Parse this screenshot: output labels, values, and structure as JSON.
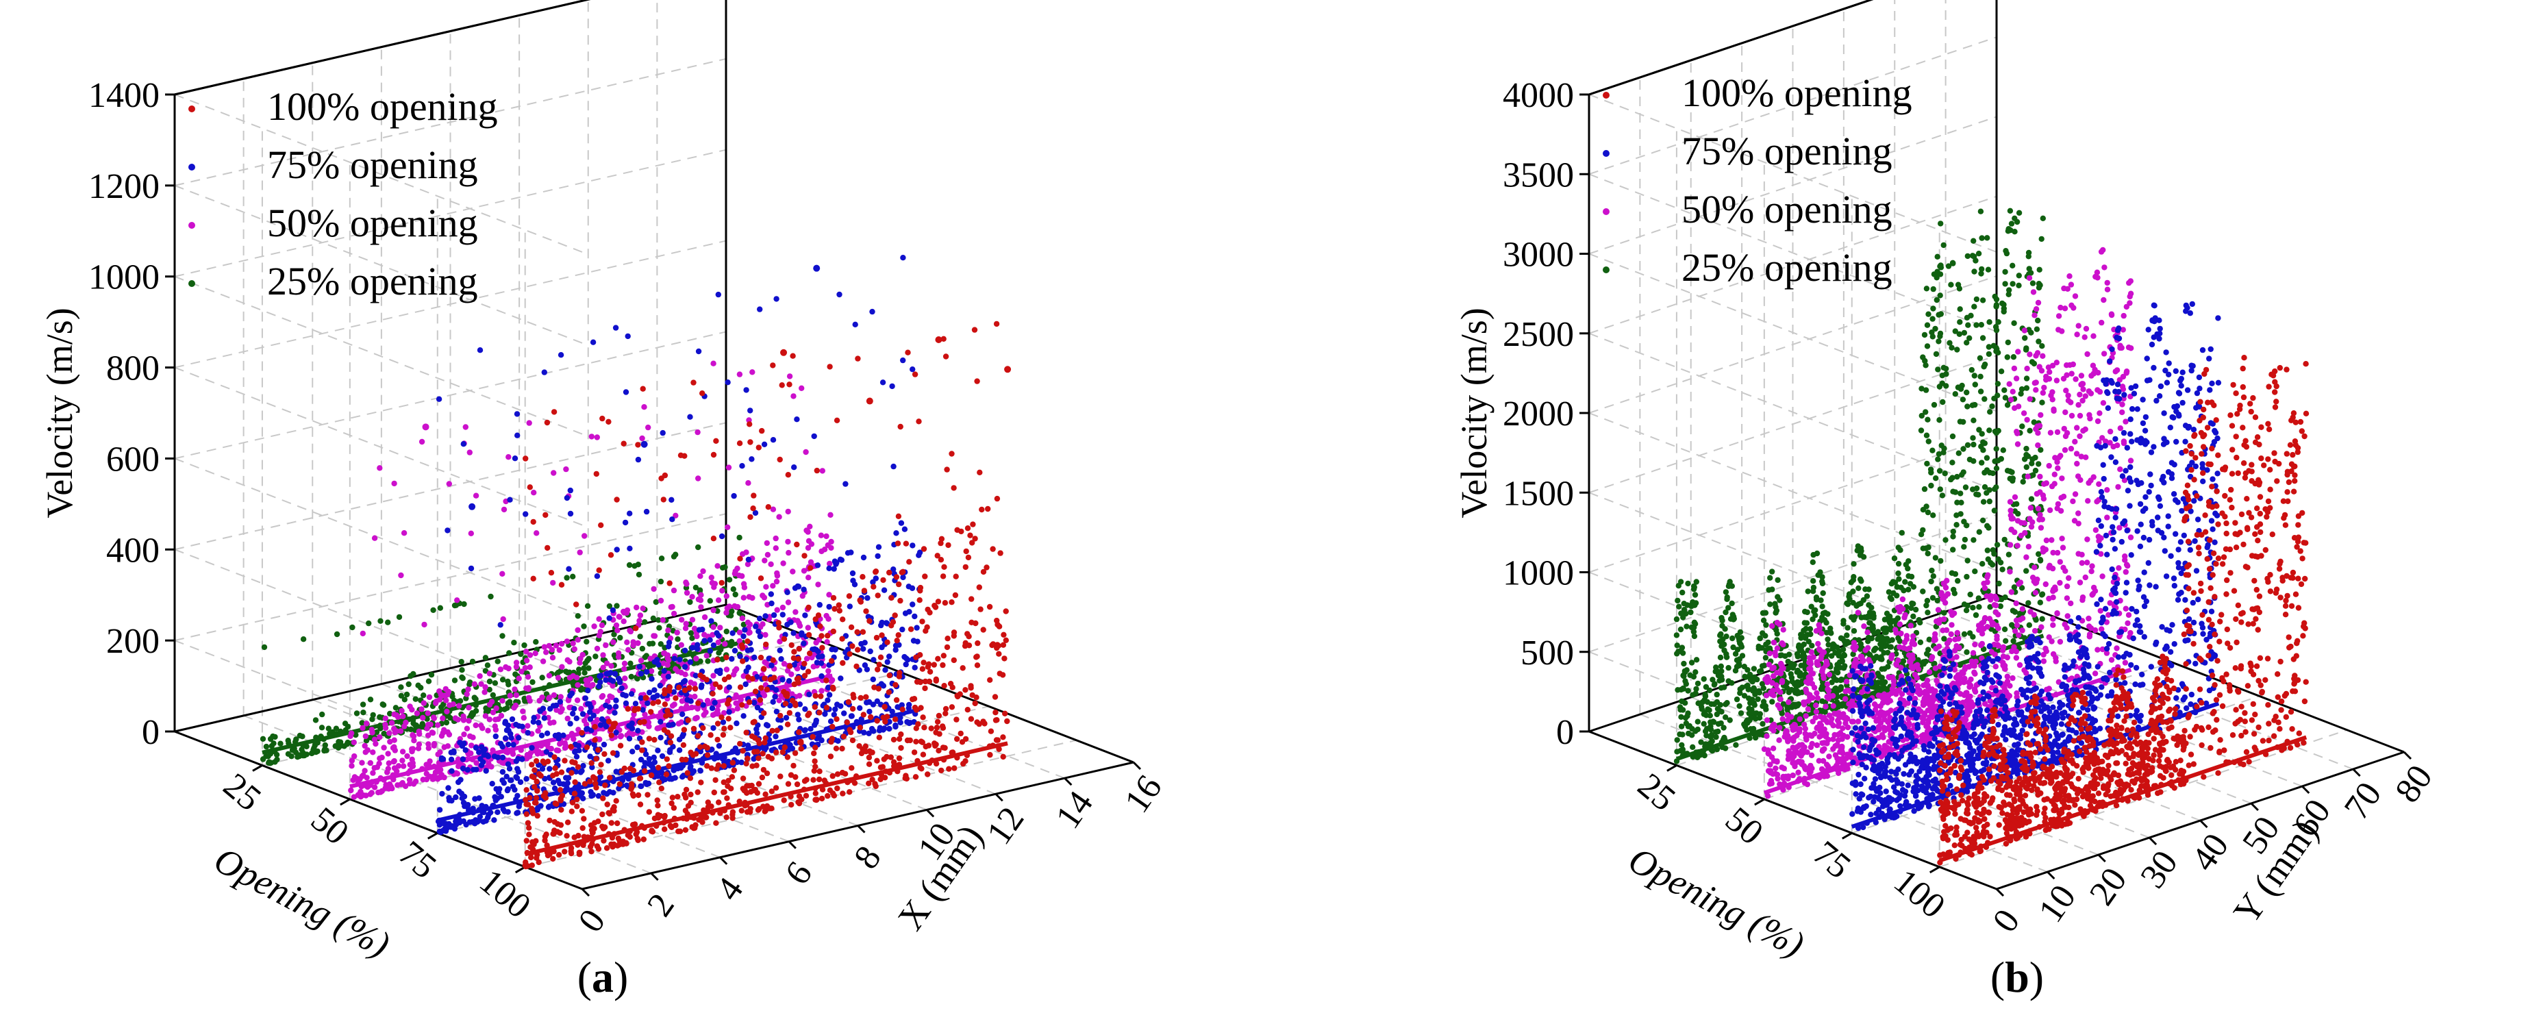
{
  "figure": {
    "panel_a_caption": "a",
    "panel_b_caption": "b"
  },
  "colors": {
    "100": "#cc1010",
    "75": "#1010cc",
    "50": "#cc10cc",
    "25": "#106010",
    "axis": "#000000",
    "grid": "#c8c8c8"
  },
  "chart_data": [
    {
      "type": "scatter",
      "panel": "a",
      "zlabel": "Velocity (m/s)",
      "ylabel": "Opening (%)",
      "xlabel": "X (mm)",
      "zlim": [
        0,
        1400
      ],
      "z_ticks": [
        "0",
        "200",
        "400",
        "600",
        "800",
        "1000",
        "1200",
        "1400"
      ],
      "opening_ticks": [
        "25",
        "50",
        "75",
        "100"
      ],
      "x_ticks": [
        "0",
        "2",
        "4",
        "6",
        "8",
        "10",
        "12",
        "14",
        "16"
      ],
      "xlim": [
        0,
        16
      ],
      "grid": true,
      "legend_position": "top-left",
      "series": [
        {
          "name": "100% opening",
          "opening": 100,
          "color_key": "100",
          "x_range": [
            0,
            14
          ],
          "typical_velocity_max": 450,
          "peak_velocity": 1000,
          "note_points": [
            [
              7.5,
              1000
            ],
            [
              12,
              950
            ],
            [
              10,
              850
            ],
            [
              14,
              850
            ]
          ]
        },
        {
          "name": "75% opening",
          "opening": 75,
          "color_key": "75",
          "x_range": [
            0,
            14
          ],
          "typical_velocity_max": 350,
          "peak_velocity": 1050,
          "note_points": [
            [
              1,
              700
            ],
            [
              6,
              750
            ],
            [
              11,
              1050
            ]
          ]
        },
        {
          "name": "50% opening",
          "opening": 50,
          "color_key": "50",
          "x_range": [
            0,
            14
          ],
          "typical_velocity_max": 300,
          "peak_velocity": 780,
          "note_points": [
            [
              2.2,
              780
            ]
          ]
        },
        {
          "name": "25% opening",
          "opening": 25,
          "color_key": "25",
          "x_range": [
            0,
            14
          ],
          "typical_velocity_max": 250,
          "peak_velocity": 260,
          "note_points": []
        }
      ]
    },
    {
      "type": "scatter",
      "panel": "b",
      "zlabel": "Velocity (m/s)",
      "ylabel": "Opening (%)",
      "xlabel": "Y (mm)",
      "zlim": [
        0,
        4000
      ],
      "z_ticks": [
        "0",
        "500",
        "1000",
        "1500",
        "2000",
        "2500",
        "3000",
        "3500",
        "4000"
      ],
      "opening_ticks": [
        "25",
        "50",
        "75",
        "100"
      ],
      "x_ticks": [
        "0",
        "10",
        "20",
        "30",
        "40",
        "50",
        "60",
        "70",
        "80"
      ],
      "xlim": [
        0,
        80
      ],
      "grid": true,
      "legend_position": "top-left",
      "series": [
        {
          "name": "100% opening",
          "opening": 100,
          "color_key": "100",
          "y_range": [
            0,
            72
          ],
          "low_band_max": 900,
          "high_band_start_y": 48,
          "high_band_max": 2600
        },
        {
          "name": "75% opening",
          "opening": 75,
          "color_key": "75",
          "y_range": [
            0,
            72
          ],
          "low_band_max": 950,
          "high_band_start_y": 48,
          "high_band_max": 2700
        },
        {
          "name": "50% opening",
          "opening": 50,
          "color_key": "50",
          "y_range": [
            0,
            72
          ],
          "low_band_max": 1000,
          "high_band_start_y": 48,
          "high_band_max": 2750
        },
        {
          "name": "25% opening",
          "opening": 25,
          "color_key": "25",
          "y_range": [
            0,
            72
          ],
          "low_band_max": 1050,
          "high_band_start_y": 48,
          "high_band_max": 2900
        }
      ]
    }
  ]
}
